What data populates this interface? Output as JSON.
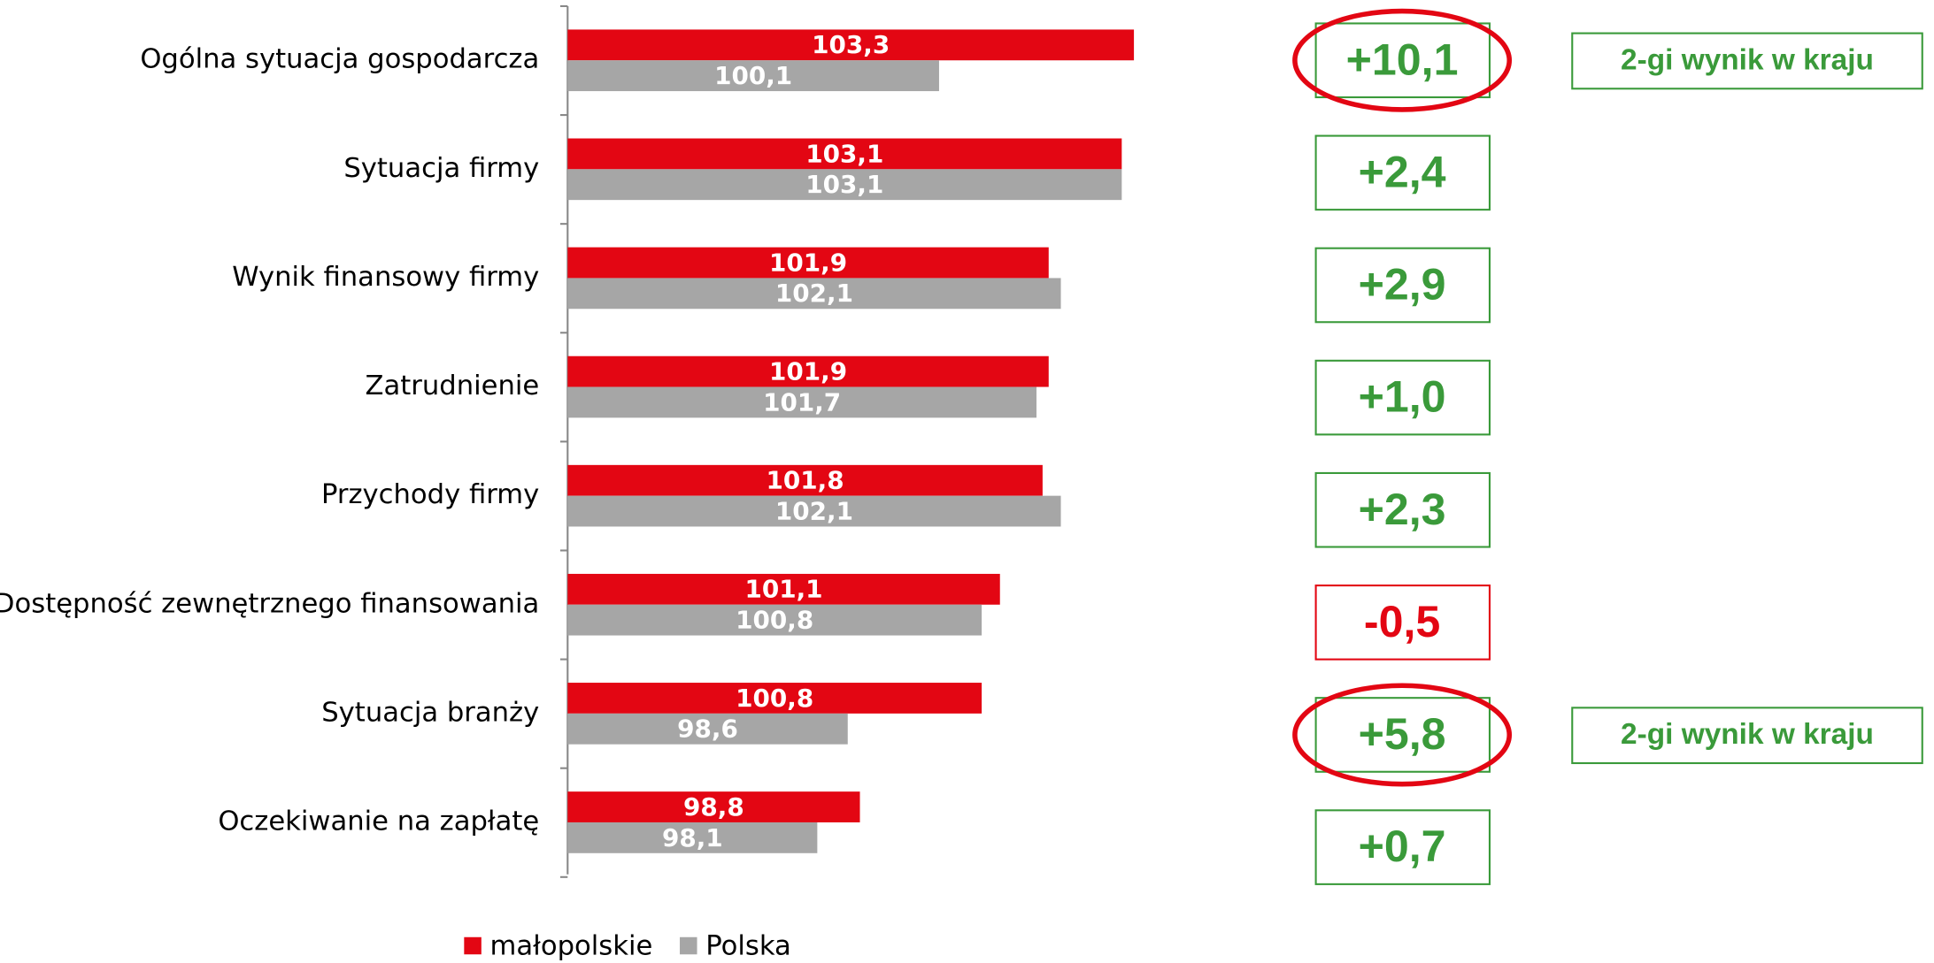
{
  "chart_data": {
    "type": "bar",
    "orientation": "horizontal",
    "categories": [
      "Ogólna sytuacja gospodarcza",
      "Sytuacja firmy",
      "Wynik finansowy firmy",
      "Zatrudnienie",
      "Przychody firmy",
      "Dostępność zewnętrznego finansowania",
      "Sytuacja branży",
      "Oczekiwanie na zapłatę"
    ],
    "series": [
      {
        "name": "małopolskie",
        "color": "#e30613",
        "values": [
          103.3,
          103.1,
          101.9,
          101.9,
          101.8,
          101.1,
          100.8,
          98.8
        ],
        "value_labels": [
          "103,3",
          "103,1",
          "101,9",
          "101,9",
          "101,8",
          "101,1",
          "100,8",
          "98,8"
        ]
      },
      {
        "name": "Polska",
        "color": "#a6a6a6",
        "values": [
          100.1,
          103.1,
          102.1,
          101.7,
          102.1,
          100.8,
          98.6,
          98.1
        ],
        "value_labels": [
          "100,1",
          "103,1",
          "102,1",
          "101,7",
          "102,1",
          "100,8",
          "98,6",
          "98,1"
        ]
      }
    ],
    "xlim": [
      94,
      104
    ],
    "legend": "bottom",
    "annotations": [
      {
        "text": "+10,1",
        "color": "#3a9a3a",
        "highlight": true,
        "note": "2-gi wynik w kraju"
      },
      {
        "text": "+2,4",
        "color": "#3a9a3a"
      },
      {
        "text": "+2,9",
        "color": "#3a9a3a"
      },
      {
        "text": "+1,0",
        "color": "#3a9a3a"
      },
      {
        "text": "+2,3",
        "color": "#3a9a3a"
      },
      {
        "text": "-0,5",
        "color": "#e30613"
      },
      {
        "text": "+5,8",
        "color": "#3a9a3a",
        "highlight": true,
        "note": "2-gi wynik w kraju"
      },
      {
        "text": "+0,7",
        "color": "#3a9a3a"
      }
    ]
  }
}
